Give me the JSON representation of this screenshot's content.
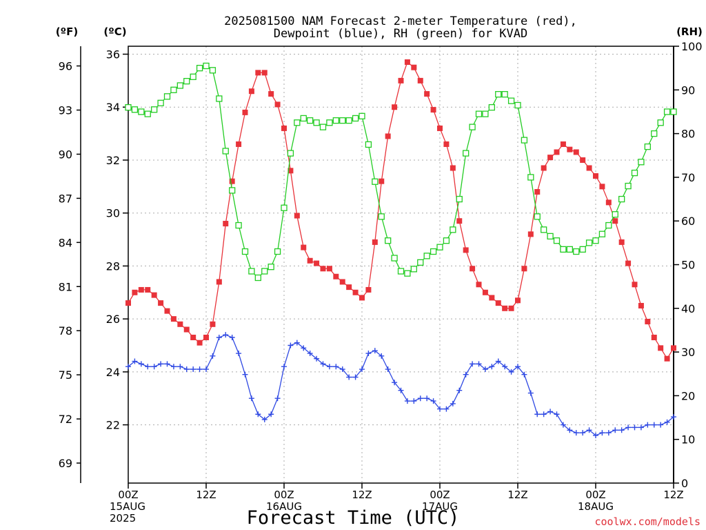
{
  "chart_data": {
    "type": "line",
    "title": "2025081500 NAM Forecast 2-meter Temperature (red),",
    "subtitle": "Dewpoint (blue), RH (green) for KVAD",
    "left_unit_f": "(ºF)",
    "left_unit_c": "(ºC)",
    "right_unit": "(RH)",
    "xlabel": "Forecast Time (UTC)",
    "credit": "coolwx.com/models",
    "x_hours_range": [
      0,
      84
    ],
    "c_range": [
      19.8,
      36.3
    ],
    "rh_range": [
      0,
      100
    ],
    "f_ticks": [
      "69",
      "72",
      "75",
      "78",
      "81",
      "84",
      "87",
      "90",
      "93",
      "96"
    ],
    "c_ticks": [
      "22",
      "24",
      "26",
      "28",
      "30",
      "32",
      "34",
      "36"
    ],
    "rh_ticks": [
      "0",
      "10",
      "20",
      "30",
      "40",
      "50",
      "60",
      "70",
      "80",
      "90",
      "100"
    ],
    "x_ticks": [
      {
        "hour": 0,
        "lines": [
          "00Z",
          "15AUG",
          "2025"
        ]
      },
      {
        "hour": 12,
        "lines": [
          "12Z"
        ]
      },
      {
        "hour": 24,
        "lines": [
          "00Z",
          "16AUG"
        ]
      },
      {
        "hour": 36,
        "lines": [
          "12Z"
        ]
      },
      {
        "hour": 48,
        "lines": [
          "00Z",
          "17AUG"
        ]
      },
      {
        "hour": 60,
        "lines": [
          "12Z"
        ]
      },
      {
        "hour": 72,
        "lines": [
          "00Z",
          "18AUG"
        ]
      },
      {
        "hour": 84,
        "lines": [
          "12Z"
        ]
      }
    ],
    "grid": true,
    "series": [
      {
        "name": "Temperature",
        "color": "#e8333a",
        "marker": "filled-square",
        "axis": "c",
        "values": [
          26.6,
          27.0,
          27.1,
          27.1,
          26.9,
          26.6,
          26.3,
          26.0,
          25.8,
          25.6,
          25.3,
          25.1,
          25.3,
          25.8,
          27.4,
          29.6,
          31.2,
          32.6,
          33.8,
          34.6,
          35.3,
          35.3,
          34.5,
          34.1,
          33.2,
          31.6,
          29.9,
          28.7,
          28.2,
          28.1,
          27.9,
          27.9,
          27.6,
          27.4,
          27.2,
          27.0,
          26.8,
          27.1,
          28.9,
          31.2,
          32.9,
          34.0,
          35.0,
          35.7,
          35.5,
          35.0,
          34.5,
          33.9,
          33.2,
          32.6,
          31.7,
          29.7,
          28.6,
          27.9,
          27.3,
          27.0,
          26.8,
          26.6,
          26.4,
          26.4,
          26.7,
          27.9,
          29.2,
          30.8,
          31.7,
          32.1,
          32.3,
          32.6,
          32.4,
          32.3,
          32.0,
          31.7,
          31.4,
          31.0,
          30.4,
          29.7,
          28.9,
          28.1,
          27.3,
          26.5,
          25.9,
          25.3,
          24.9,
          24.5,
          24.9
        ]
      },
      {
        "name": "Dewpoint",
        "color": "#2f49e3",
        "marker": "plus",
        "axis": "c",
        "values": [
          24.2,
          24.4,
          24.3,
          24.2,
          24.2,
          24.3,
          24.3,
          24.2,
          24.2,
          24.1,
          24.1,
          24.1,
          24.1,
          24.6,
          25.3,
          25.4,
          25.3,
          24.7,
          23.9,
          23.0,
          22.4,
          22.2,
          22.4,
          23.0,
          24.2,
          25.0,
          25.1,
          24.9,
          24.7,
          24.5,
          24.3,
          24.2,
          24.2,
          24.1,
          23.8,
          23.8,
          24.1,
          24.7,
          24.8,
          24.6,
          24.1,
          23.6,
          23.3,
          22.9,
          22.9,
          23.0,
          23.0,
          22.9,
          22.6,
          22.6,
          22.8,
          23.3,
          23.9,
          24.3,
          24.3,
          24.1,
          24.2,
          24.4,
          24.2,
          24.0,
          24.2,
          23.9,
          23.2,
          22.4,
          22.4,
          22.5,
          22.4,
          22.0,
          21.8,
          21.7,
          21.7,
          21.8,
          21.6,
          21.7,
          21.7,
          21.8,
          21.8,
          21.9,
          21.9,
          21.9,
          22.0,
          22.0,
          22.0,
          22.1,
          22.3
        ]
      },
      {
        "name": "RH",
        "color": "#22cc22",
        "marker": "open-square",
        "axis": "rh",
        "values": [
          86,
          85.5,
          85,
          84.5,
          85.5,
          87,
          88.5,
          90,
          91,
          92,
          93,
          95,
          95.5,
          94.5,
          88,
          76,
          67,
          59,
          53,
          48.5,
          47,
          48.5,
          49.5,
          53,
          63,
          75.5,
          82.5,
          83.5,
          83,
          82.5,
          81.5,
          82.5,
          83,
          83,
          83,
          83.5,
          84,
          77.5,
          69,
          61,
          55.5,
          51.5,
          48.5,
          48,
          49,
          50.5,
          52,
          53,
          54,
          55.5,
          58,
          65,
          75.5,
          81.5,
          84.5,
          84.5,
          86,
          89,
          89,
          87.5,
          86.5,
          78.5,
          70,
          61,
          58,
          56.5,
          55.5,
          53.5,
          53.5,
          53,
          53.5,
          55,
          55.5,
          57,
          59,
          61.5,
          65,
          68,
          71,
          73.5,
          77,
          80,
          82.5,
          85,
          85
        ]
      }
    ]
  }
}
